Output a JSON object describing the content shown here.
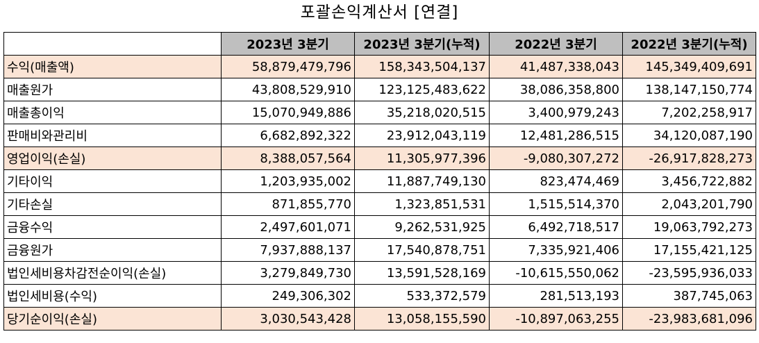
{
  "title": "포괄손익계산서 [연결]",
  "colors": {
    "header_bg": "#bfbfbf",
    "highlight_bg": "#fbe4d5"
  },
  "table": {
    "headers": [
      "",
      "2023년 3분기",
      "2023년 3분기(누적)",
      "2022년 3분기",
      "2022년 3분기(누적)"
    ],
    "rows": [
      {
        "label": "수익(매출액)",
        "values": [
          "58,879,479,796",
          "158,343,504,137",
          "41,487,338,043",
          "145,349,409,691"
        ],
        "highlight": true
      },
      {
        "label": "매출원가",
        "values": [
          "43,808,529,910",
          "123,125,483,622",
          "38,086,358,800",
          "138,147,150,774"
        ],
        "highlight": false
      },
      {
        "label": "매출총이익",
        "values": [
          "15,070,949,886",
          "35,218,020,515",
          "3,400,979,243",
          "7,202,258,917"
        ],
        "highlight": false
      },
      {
        "label": "판매비와관리비",
        "values": [
          "6,682,892,322",
          "23,912,043,119",
          "12,481,286,515",
          "34,120,087,190"
        ],
        "highlight": false
      },
      {
        "label": "영업이익(손실)",
        "values": [
          "8,388,057,564",
          "11,305,977,396",
          "-9,080,307,272",
          "-26,917,828,273"
        ],
        "highlight": true
      },
      {
        "label": "기타이익",
        "values": [
          "1,203,935,002",
          "11,887,749,130",
          "823,474,469",
          "3,456,722,882"
        ],
        "highlight": false
      },
      {
        "label": "기타손실",
        "values": [
          "871,855,770",
          "1,323,851,531",
          "1,515,514,370",
          "2,043,201,790"
        ],
        "highlight": false
      },
      {
        "label": "금융수익",
        "values": [
          "2,497,601,071",
          "9,262,531,925",
          "6,492,718,517",
          "19,063,792,273"
        ],
        "highlight": false
      },
      {
        "label": "금융원가",
        "values": [
          "7,937,888,137",
          "17,540,878,751",
          "7,335,921,406",
          "17,155,421,125"
        ],
        "highlight": false
      },
      {
        "label": "법인세비용차감전순이익(손실)",
        "values": [
          "3,279,849,730",
          "13,591,528,169",
          "-10,615,550,062",
          "-23,595,936,033"
        ],
        "highlight": false
      },
      {
        "label": "법인세비용(수익)",
        "values": [
          "249,306,302",
          "533,372,579",
          "281,513,193",
          "387,745,063"
        ],
        "highlight": false
      },
      {
        "label": "당기순이익(손실)",
        "values": [
          "3,030,543,428",
          "13,058,155,590",
          "-10,897,063,255",
          "-23,983,681,096"
        ],
        "highlight": true
      }
    ]
  }
}
